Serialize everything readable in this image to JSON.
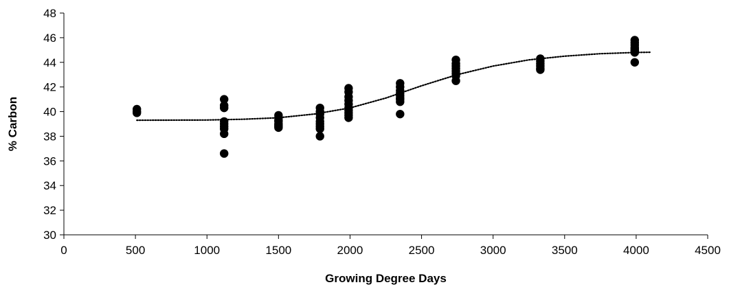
{
  "chart_data": {
    "type": "scatter",
    "xlabel": "Growing Degree Days",
    "ylabel": "% Carbon",
    "xlim": [
      0,
      4500
    ],
    "ylim": [
      30,
      48
    ],
    "xticks": [
      0,
      500,
      1000,
      1500,
      2000,
      2500,
      3000,
      3500,
      4000,
      4500
    ],
    "yticks": [
      30,
      32,
      34,
      36,
      38,
      40,
      42,
      44,
      46,
      48
    ],
    "grid": false,
    "legend": "none",
    "marker_color": "#000000",
    "series": [
      {
        "style": "points",
        "x": [
          510,
          510,
          510,
          1120,
          1120,
          1120,
          1120,
          1120,
          1120,
          1120,
          1120,
          1120,
          1500,
          1500,
          1500,
          1500,
          1500,
          1500,
          1500,
          1500,
          1790,
          1790,
          1790,
          1790,
          1790,
          1790,
          1790,
          1790,
          1790,
          1990,
          1990,
          1990,
          1990,
          1990,
          1990,
          1990,
          1990,
          1990,
          1990,
          2350,
          2350,
          2350,
          2350,
          2350,
          2350,
          2350,
          2350,
          2350,
          2740,
          2740,
          2740,
          2740,
          2740,
          2740,
          2740,
          2740,
          3330,
          3330,
          3330,
          3330,
          3330,
          3330,
          3990,
          3990,
          3990,
          3990,
          3990,
          3990,
          3990,
          3990,
          3990
        ],
        "y": [
          40.2,
          40.0,
          39.9,
          41.0,
          40.5,
          40.3,
          39.2,
          39.0,
          38.8,
          38.6,
          38.2,
          36.6,
          39.7,
          39.5,
          39.3,
          39.2,
          39.0,
          38.9,
          38.8,
          38.7,
          40.3,
          40.0,
          39.8,
          39.5,
          39.2,
          39.0,
          38.8,
          38.6,
          38.0,
          41.9,
          41.6,
          41.2,
          40.9,
          40.6,
          40.3,
          40.1,
          39.9,
          39.7,
          39.5,
          42.3,
          42.0,
          41.7,
          41.5,
          41.3,
          41.1,
          41.0,
          40.8,
          39.8,
          44.2,
          43.9,
          43.7,
          43.5,
          43.3,
          43.1,
          42.9,
          42.5,
          44.3,
          44.1,
          43.9,
          43.7,
          43.5,
          43.4,
          45.8,
          45.6,
          45.4,
          45.2,
          45.1,
          45.0,
          44.9,
          44.8,
          44.0
        ]
      },
      {
        "style": "dotted-trendline",
        "x": [
          510,
          1000,
          1250,
          1500,
          1750,
          2000,
          2250,
          2500,
          2750,
          3000,
          3250,
          3500,
          3750,
          4000,
          4100
        ],
        "y": [
          39.3,
          39.32,
          39.38,
          39.5,
          39.8,
          40.3,
          41.1,
          42.1,
          43.0,
          43.7,
          44.2,
          44.5,
          44.7,
          44.8,
          44.82
        ]
      }
    ]
  }
}
